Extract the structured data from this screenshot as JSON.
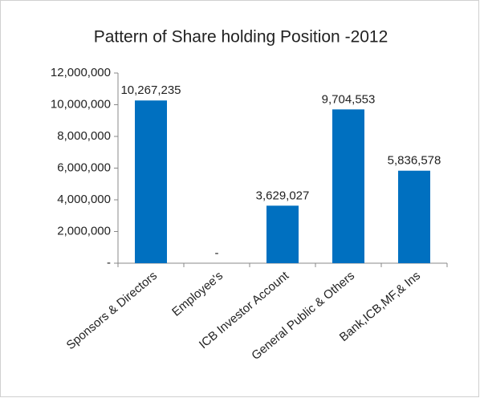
{
  "chart_data": {
    "type": "bar",
    "title": "Pattern of Share holding Position -2012",
    "categories": [
      "Sponsors & Directors",
      "Employee's",
      "ICB Investor Account",
      "General Public & Others",
      "Bank,ICB,MF,& Ins"
    ],
    "values": [
      10267235,
      0,
      3629027,
      9704553,
      5836578
    ],
    "value_labels": [
      "10,267,235",
      "-",
      "3,629,027",
      "9,704,553",
      "5,836,578"
    ],
    "color": "#0070c0",
    "ylim": [
      0,
      12000000
    ],
    "yticks": [
      {
        "value": 0,
        "label": "-"
      },
      {
        "value": 2000000,
        "label": "2,000,000"
      },
      {
        "value": 4000000,
        "label": "4,000,000"
      },
      {
        "value": 6000000,
        "label": "6,000,000"
      },
      {
        "value": 8000000,
        "label": "8,000,000"
      },
      {
        "value": 10000000,
        "label": "10,000,000"
      },
      {
        "value": 12000000,
        "label": "12,000,000"
      }
    ],
    "grid": false
  }
}
